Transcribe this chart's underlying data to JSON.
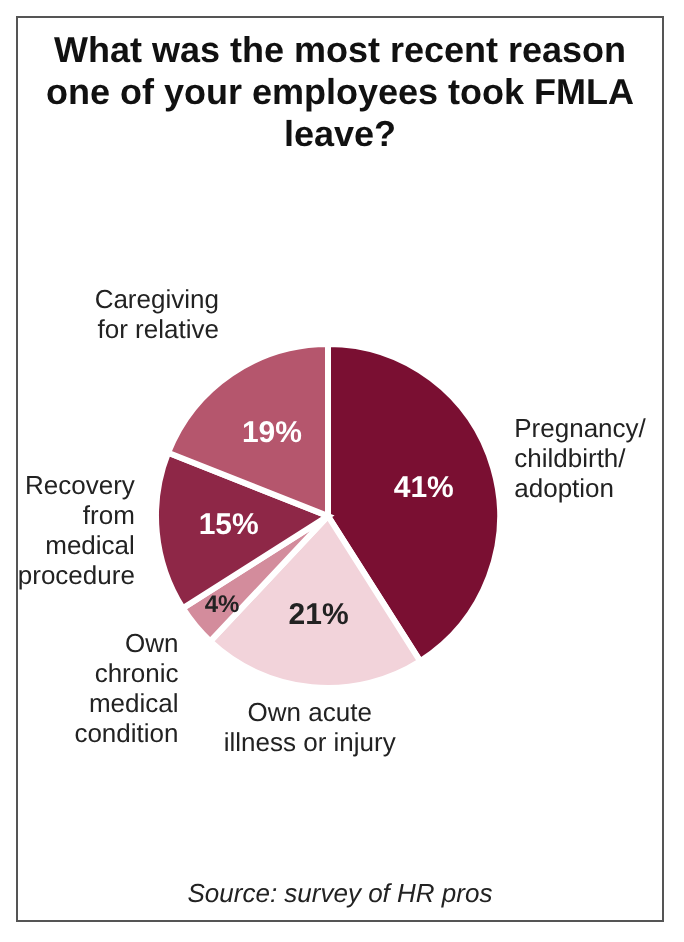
{
  "chart_data": {
    "type": "pie",
    "title": "What was the most recent reason one of your employees took FMLA leave?",
    "categories": [
      "Pregnancy/\nchildbirth/\nadoption",
      "Own acute\nillness or injury",
      "Own\nchronic\nmedical\ncondition",
      "Recovery\nfrom\nmedical\nprocedure",
      "Caregiving\nfor relative"
    ],
    "values": [
      41,
      21,
      4,
      15,
      19
    ],
    "value_labels": [
      "41%",
      "21%",
      "4%",
      "15%",
      "19%"
    ],
    "colors": [
      "#7a0f32",
      "#f2d3da",
      "#d38c9c",
      "#8e2747",
      "#b5566d"
    ],
    "legend": false,
    "annotations": [
      "Source: survey of HR pros"
    ]
  }
}
